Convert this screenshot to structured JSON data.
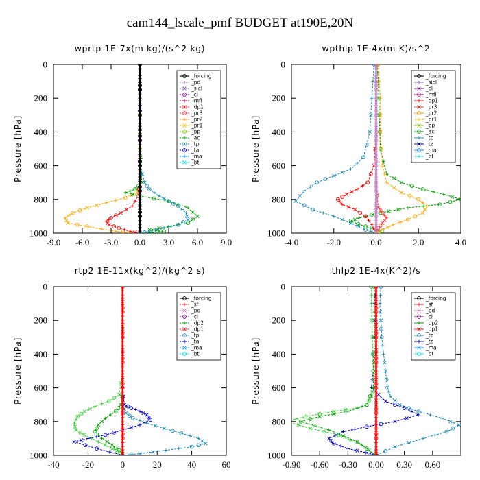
{
  "title": "cam144_lscale_pmf  BUDGET at190E,20N",
  "chart_data": [
    {
      "type": "line",
      "title": "wprtp  1E-7x(m kg)/(s^2 kg)",
      "ylabel": "Pressure [hPa]",
      "xlim": [
        -9,
        9
      ],
      "ylim": [
        1000,
        0
      ],
      "xticks": [
        "-9.0",
        "-6.0",
        "-3.0",
        "0.0",
        "3.0",
        "6.0",
        "9.0"
      ],
      "yticks": [
        "0",
        "200",
        "400",
        "600",
        "800",
        "1000"
      ],
      "legend": [
        "_forcing",
        "_pd",
        "_sicl",
        "_cl",
        "_mfl",
        "_dp1",
        "_pr3",
        "_pr2",
        "_pr1",
        "_bp",
        "_ac",
        "_tp",
        "_ta",
        "_ma",
        "_bt"
      ],
      "series": [
        {
          "name": "_forcing",
          "color": "#000000",
          "x": [
            0,
            0,
            0,
            0,
            0,
            0,
            0,
            0,
            0,
            0,
            0,
            0,
            0,
            0,
            0,
            0,
            0,
            0,
            0,
            0,
            0
          ],
          "y": [
            0,
            50,
            100,
            150,
            200,
            250,
            300,
            350,
            400,
            450,
            500,
            550,
            600,
            650,
            700,
            750,
            800,
            850,
            900,
            950,
            1000
          ]
        },
        {
          "name": "_pd",
          "color": "#c080c0",
          "x": [
            0,
            0,
            0,
            0,
            0,
            0,
            0,
            0,
            0,
            0,
            0,
            0,
            0,
            0,
            0,
            0,
            0,
            0,
            0,
            0,
            0
          ],
          "y": [
            0,
            50,
            100,
            150,
            200,
            250,
            300,
            350,
            400,
            450,
            500,
            550,
            600,
            650,
            700,
            750,
            800,
            850,
            900,
            950,
            1000
          ]
        },
        {
          "name": "_cl",
          "color": "#800080",
          "x": [
            0,
            0,
            0,
            0,
            0,
            0,
            0,
            0,
            0,
            0,
            0,
            0,
            0,
            0,
            0,
            0,
            0,
            0,
            0,
            0,
            0
          ],
          "y": [
            0,
            50,
            100,
            150,
            200,
            250,
            300,
            350,
            400,
            450,
            500,
            550,
            600,
            650,
            700,
            750,
            800,
            850,
            900,
            950,
            1000
          ]
        },
        {
          "name": "_pr1",
          "color": "#ffa500",
          "x": [
            0,
            0,
            0,
            0,
            0,
            -0.3,
            -1.5,
            -3.5,
            -5.5,
            -7,
            -7.8,
            -7.5,
            -5.5,
            -2.5,
            -1
          ],
          "y": [
            0,
            200,
            400,
            600,
            720,
            760,
            790,
            820,
            850,
            880,
            910,
            940,
            960,
            990,
            1000
          ]
        },
        {
          "name": "_dp1",
          "color": "#ff0000",
          "x": [
            0,
            0,
            0,
            -0.2,
            -0.8,
            -2.0,
            -3.0,
            -3.5,
            -3.2,
            -2.2,
            -1.0,
            0
          ],
          "y": [
            0,
            400,
            700,
            780,
            840,
            880,
            910,
            930,
            950,
            970,
            990,
            1000
          ]
        },
        {
          "name": "_ac",
          "color": "#00a000",
          "x": [
            0,
            0,
            0.2,
            -0.5,
            -1.5,
            0,
            3,
            5,
            6,
            5,
            3,
            1,
            2.5,
            0
          ],
          "y": [
            0,
            400,
            700,
            740,
            760,
            780,
            810,
            850,
            900,
            940,
            960,
            980,
            990,
            1000
          ]
        },
        {
          "name": "_tp",
          "color": "#1f8ab5",
          "x": [
            0,
            0,
            0.5,
            1,
            2,
            3,
            4,
            4.8,
            5,
            4,
            2.5,
            1,
            0
          ],
          "y": [
            0,
            600,
            700,
            740,
            780,
            810,
            840,
            880,
            920,
            950,
            970,
            990,
            1000
          ]
        }
      ]
    },
    {
      "type": "line",
      "title": "wpthlp  1E-4x(m K)/s^2",
      "ylabel": "Pressure [hPa]",
      "xlim": [
        -4,
        4
      ],
      "ylim": [
        1000,
        0
      ],
      "xticks": [
        "-4.0",
        "-2.0",
        "0.0",
        "2.0",
        "4.0"
      ],
      "yticks": [
        "0",
        "200",
        "400",
        "600",
        "800",
        "1000"
      ],
      "legend": [
        "_forcing",
        "_sicl",
        "_cl",
        "_mfl",
        "_dp1",
        "_pr3",
        "_pr2",
        "_pr1",
        "_bp",
        "_ac",
        "_tp",
        "_ta",
        "_ma",
        "_bt"
      ],
      "series": [
        {
          "name": "_forcing",
          "color": "#c080c0",
          "x": [
            0,
            0,
            0,
            0,
            0,
            0,
            0,
            0,
            0,
            0,
            0,
            0,
            0,
            0,
            0,
            0,
            0,
            0,
            0,
            0,
            0
          ],
          "y": [
            0,
            50,
            100,
            150,
            200,
            250,
            300,
            350,
            400,
            450,
            500,
            550,
            600,
            650,
            700,
            750,
            800,
            850,
            900,
            950,
            1000
          ]
        },
        {
          "name": "_ac",
          "color": "#00a000",
          "x": [
            0.05,
            0.1,
            0.15,
            0.2,
            0.5,
            1.2,
            2.2,
            3.2,
            4.0,
            3.0,
            1.5,
            0.6,
            -0.2,
            -0.8,
            -1.2,
            -0.5,
            0,
            0.3
          ],
          "y": [
            0,
            100,
            300,
            500,
            650,
            700,
            740,
            770,
            800,
            830,
            850,
            870,
            890,
            910,
            930,
            960,
            980,
            1000
          ]
        },
        {
          "name": "_tp",
          "color": "#1f8ab5",
          "x": [
            -0.1,
            -0.2,
            -0.3,
            -0.6,
            -1.2,
            -2.0,
            -2.8,
            -3.4,
            -3.8,
            -3.0,
            -2.0,
            -1.2,
            -0.5,
            0
          ],
          "y": [
            0,
            200,
            400,
            550,
            620,
            660,
            700,
            750,
            810,
            860,
            900,
            940,
            980,
            1000
          ]
        },
        {
          "name": "_pr1",
          "color": "#ffa500",
          "x": [
            0.1,
            0.2,
            0.2,
            0.3,
            0.5,
            1.2,
            2.0,
            2.4,
            2.2,
            1.5,
            0.8,
            0.3,
            0
          ],
          "y": [
            0,
            200,
            400,
            600,
            700,
            760,
            800,
            840,
            880,
            920,
            950,
            980,
            1000
          ]
        },
        {
          "name": "_dp1",
          "color": "#ff0000",
          "x": [
            0,
            0,
            -0.1,
            -0.4,
            -0.9,
            -1.4,
            -1.8,
            -1.6,
            -1.0,
            -0.5,
            -0.2,
            0
          ],
          "y": [
            0,
            400,
            600,
            700,
            740,
            770,
            800,
            830,
            860,
            900,
            950,
            1000
          ]
        },
        {
          "name": "_pr3",
          "color": "#ff3030",
          "x": [
            0,
            0,
            0.1,
            0.3,
            0.5,
            0.3,
            0.1,
            0
          ],
          "y": [
            0,
            700,
            850,
            880,
            910,
            940,
            970,
            1000
          ]
        }
      ]
    },
    {
      "type": "line",
      "title": "rtp2  1E-11x(kg^2)/(kg^2 s)",
      "ylabel": "Pressure [hPa]",
      "xlim": [
        -40,
        60
      ],
      "ylim": [
        1000,
        0
      ],
      "xticks": [
        "-40",
        "-20",
        "0",
        "20",
        "40",
        "60"
      ],
      "yticks": [
        "0",
        "200",
        "400",
        "600",
        "800",
        "1000"
      ],
      "legend": [
        "_forcing",
        "_sf",
        "_pd",
        "_cl",
        "_dp2",
        "_dp1",
        "_tp",
        "_ta",
        "_ma",
        "_bt"
      ],
      "series": [
        {
          "name": "_forcing",
          "color": "#ff0000",
          "x": [
            0,
            0,
            0,
            0,
            0,
            0,
            0,
            0,
            0,
            0,
            0,
            0,
            0,
            0,
            0,
            0,
            0,
            0,
            0,
            0,
            0
          ],
          "y": [
            0,
            50,
            100,
            150,
            200,
            250,
            300,
            350,
            400,
            450,
            500,
            550,
            600,
            650,
            700,
            750,
            800,
            850,
            900,
            950,
            1000
          ]
        },
        {
          "name": "_dp1",
          "color": "#40d040",
          "x": [
            0,
            0,
            -2,
            -8,
            -16,
            -22,
            -26,
            -28,
            -27,
            -22,
            -14,
            -6,
            0
          ],
          "y": [
            0,
            500,
            640,
            680,
            710,
            740,
            770,
            810,
            850,
            880,
            920,
            960,
            1000
          ]
        },
        {
          "name": "_dp2",
          "color": "#00a000",
          "x": [
            0,
            0,
            -1,
            -4,
            -10,
            -14,
            -16,
            -12,
            -6,
            -2,
            0
          ],
          "y": [
            0,
            600,
            700,
            740,
            780,
            820,
            860,
            900,
            940,
            970,
            1000
          ]
        },
        {
          "name": "_ta",
          "color": "#0000c0",
          "x": [
            0,
            0,
            1,
            5,
            10,
            14,
            16,
            10,
            0,
            -10,
            -20,
            -28,
            -15,
            0
          ],
          "y": [
            0,
            600,
            700,
            720,
            740,
            760,
            790,
            820,
            850,
            880,
            900,
            920,
            960,
            1000
          ]
        },
        {
          "name": "_tp",
          "color": "#1f8ab5",
          "x": [
            0,
            0,
            2,
            6,
            14,
            24,
            34,
            44,
            48,
            40,
            25,
            10,
            0
          ],
          "y": [
            0,
            700,
            750,
            780,
            810,
            840,
            870,
            900,
            930,
            950,
            970,
            990,
            1000
          ]
        }
      ]
    },
    {
      "type": "line",
      "title": "thlp2  1E-4x(K^2)/s",
      "ylabel": "Pressure [hPa]",
      "xlim": [
        -0.9,
        0.9
      ],
      "ylim": [
        1000,
        0
      ],
      "xticks": [
        "-0.90",
        "-0.60",
        "-0.30",
        "0.00",
        "0.30",
        "0.60"
      ],
      "yticks": [
        "0",
        "200",
        "400",
        "600",
        "800",
        "1000"
      ],
      "legend": [
        "_forcing",
        "_sf",
        "_pd",
        "_cl",
        "_dp2",
        "_dp1",
        "_tp",
        "_ta",
        "_ma",
        "_bt"
      ],
      "series": [
        {
          "name": "_forcing",
          "color": "#ff0000",
          "x": [
            0,
            0,
            0,
            0,
            0,
            0,
            0,
            0,
            0,
            0,
            0,
            0,
            0,
            0,
            0,
            0,
            0,
            0,
            0,
            0,
            0
          ],
          "y": [
            0,
            50,
            100,
            150,
            200,
            250,
            300,
            350,
            400,
            450,
            500,
            550,
            600,
            650,
            700,
            750,
            800,
            850,
            900,
            950,
            1000
          ]
        },
        {
          "name": "_tp",
          "color": "#1f8ab5",
          "x": [
            0.05,
            0.04,
            0.05,
            0.06,
            0.08,
            0.1,
            0.12,
            0.15,
            0.25,
            0.45,
            0.7,
            0.88,
            0.75,
            0.5,
            0.2,
            0
          ],
          "y": [
            0,
            100,
            200,
            300,
            400,
            500,
            600,
            650,
            700,
            740,
            780,
            820,
            860,
            900,
            950,
            1000
          ]
        },
        {
          "name": "_ta",
          "color": "#0000c0",
          "x": [
            0,
            -0.02,
            -0.02,
            -0.03,
            -0.05,
            0.1,
            0.3,
            0.45,
            0.2,
            -0.1,
            -0.35,
            -0.5,
            -0.45,
            -0.3,
            -0.1,
            0
          ],
          "y": [
            0,
            100,
            300,
            500,
            600,
            680,
            720,
            760,
            800,
            830,
            860,
            900,
            930,
            960,
            985,
            1000
          ]
        },
        {
          "name": "_dp1",
          "color": "#40d040",
          "x": [
            -0.05,
            -0.05,
            -0.04,
            -0.03,
            -0.03,
            -0.05,
            -0.1,
            -0.2,
            -0.45,
            -0.75,
            -0.95,
            -0.7,
            -0.4,
            -0.15,
            0
          ],
          "y": [
            0,
            100,
            300,
            500,
            600,
            650,
            700,
            720,
            740,
            770,
            800,
            840,
            880,
            940,
            1000
          ]
        },
        {
          "name": "_dp2",
          "color": "#00a000",
          "x": [
            -0.02,
            -0.02,
            -0.03,
            -0.1,
            -0.3,
            -0.6,
            -0.8,
            -0.5,
            -0.2,
            0
          ],
          "y": [
            0,
            300,
            600,
            700,
            740,
            770,
            800,
            850,
            920,
            1000
          ]
        }
      ]
    }
  ]
}
